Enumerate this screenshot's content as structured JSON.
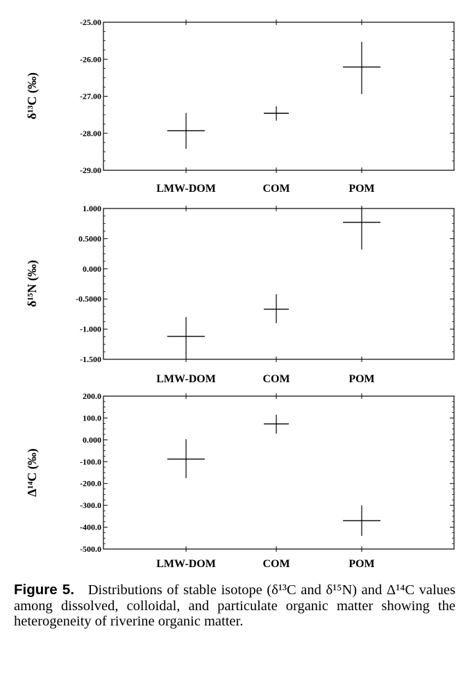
{
  "chart_data": [
    {
      "type": "errorbar",
      "ylabel": "δ¹³C (‰)",
      "categories": [
        "LMW-DOM",
        "COM",
        "POM"
      ],
      "values": [
        -27.93,
        -27.46,
        -26.21
      ],
      "err_low": [
        -28.42,
        -27.66,
        -26.94
      ],
      "err_high": [
        -27.45,
        -27.27,
        -25.53
      ],
      "ylim": [
        -29.0,
        -25.0
      ],
      "yticks": [
        "-29.00",
        "-28.00",
        "-27.00",
        "-26.00",
        "-25.00"
      ],
      "ytick_values": [
        -29,
        -28,
        -27,
        -26,
        -25
      ]
    },
    {
      "type": "errorbar",
      "ylabel": "δ¹⁵N (‰)",
      "categories": [
        "LMW-DOM",
        "COM",
        "POM"
      ],
      "values": [
        -1.12,
        -0.67,
        0.77
      ],
      "err_low": [
        -1.5,
        -0.9,
        0.32
      ],
      "err_high": [
        -0.8,
        -0.42,
        1.03
      ],
      "ylim": [
        -1.5,
        1.0
      ],
      "yticks": [
        "-1.500",
        "-1.000",
        "-0.5000",
        "0.000",
        "0.5000",
        "1.000"
      ],
      "ytick_values": [
        -1.5,
        -1.0,
        -0.5,
        0.0,
        0.5,
        1.0
      ]
    },
    {
      "type": "errorbar",
      "ylabel": "Δ¹⁴C (‰)",
      "categories": [
        "LMW-DOM",
        "COM",
        "POM"
      ],
      "values": [
        -88,
        73,
        -370
      ],
      "err_low": [
        -175,
        28,
        -440
      ],
      "err_high": [
        3,
        115,
        -300
      ],
      "ylim": [
        -500,
        200
      ],
      "yticks": [
        "-500.0",
        "-400.0",
        "-300.0",
        "-200.0",
        "-100.0",
        "0.000",
        "100.0",
        "200.0"
      ],
      "ytick_values": [
        -500,
        -400,
        -300,
        -200,
        -100,
        0,
        100,
        200
      ]
    }
  ],
  "caption": {
    "label": "Figure 5.",
    "text": "Distributions of stable isotope (δ¹³C and δ¹⁵N) and Δ¹⁴C values among dissolved, colloidal, and particulate organic matter showing the heterogeneity of riverine organic matter."
  },
  "colors": {
    "ink": "#000000",
    "background": "#ffffff"
  }
}
